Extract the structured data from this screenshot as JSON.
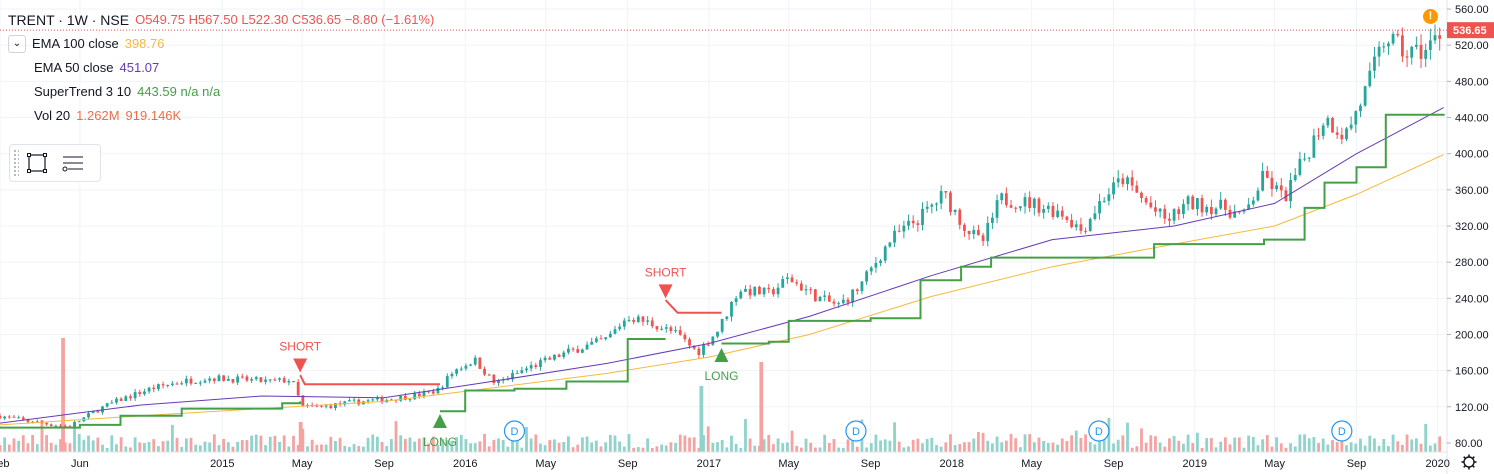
{
  "legend": {
    "symbol": "TRENT · 1W · NSE",
    "ohlc": "O549.75 H567.50 L522.30 C536.65 −8.80 (−1.61%)",
    "collapse_icon": "chevron-down-icon",
    "ema100": {
      "label": "EMA 100 close",
      "value": "398.76",
      "color": "#f5b93d"
    },
    "ema50": {
      "label": "EMA 50 close",
      "value": "451.07",
      "color": "#673ab7"
    },
    "supertrend": {
      "label": "SuperTrend 3 10",
      "value": "443.59 n/a n/a",
      "color": "#43a047"
    },
    "vol": {
      "label": "Vol 20",
      "value1": "1.262M",
      "value2": "919.146K",
      "color": "#ef6c45"
    }
  },
  "toolbar": {
    "rect_icon": "rectangle-select-icon",
    "list_icon": "object-tree-icon"
  },
  "alert_icon": "!",
  "settings_icon": "gear-icon",
  "colors": {
    "up": "#26a69a",
    "down": "#ef5350",
    "vol_up": "#8fd3cb",
    "vol_down": "#f5a3a1",
    "supertrend_up": "#43a047",
    "supertrend_down": "#ef5350",
    "last_price": "#ef5350"
  },
  "chart_data": {
    "type": "candlestick",
    "title": "TRENT · 1W · NSE",
    "ylim": [
      70,
      570
    ],
    "y_ticks": [
      80,
      120,
      160,
      200,
      240,
      280,
      320,
      360,
      400,
      440,
      480,
      520,
      560
    ],
    "x_range": [
      "2014-02-01",
      "2020-01-15"
    ],
    "x_ticks": [
      {
        "label": "Feb",
        "date": "2014-02-01"
      },
      {
        "label": "Jun",
        "date": "2014-06-01"
      },
      {
        "label": "2015",
        "date": "2015-01-01"
      },
      {
        "label": "May",
        "date": "2015-05-01"
      },
      {
        "label": "Sep",
        "date": "2015-09-01"
      },
      {
        "label": "2016",
        "date": "2016-01-01"
      },
      {
        "label": "May",
        "date": "2016-05-01"
      },
      {
        "label": "Sep",
        "date": "2016-09-01"
      },
      {
        "label": "2017",
        "date": "2017-01-01"
      },
      {
        "label": "May",
        "date": "2017-05-01"
      },
      {
        "label": "Sep",
        "date": "2017-09-01"
      },
      {
        "label": "2018",
        "date": "2018-01-01"
      },
      {
        "label": "May",
        "date": "2018-05-01"
      },
      {
        "label": "Sep",
        "date": "2018-09-01"
      },
      {
        "label": "2019",
        "date": "2019-01-01"
      },
      {
        "label": "May",
        "date": "2019-05-01"
      },
      {
        "label": "Sep",
        "date": "2019-09-01"
      },
      {
        "label": "2020",
        "date": "2020-01-01"
      }
    ],
    "last_price": {
      "value": 536.65,
      "label": "536.65"
    },
    "price_path": [
      [
        "2014-02-01",
        110
      ],
      [
        "2014-03-15",
        104
      ],
      [
        "2014-05-15",
        98
      ],
      [
        "2014-06-01",
        105
      ],
      [
        "2014-07-01",
        118
      ],
      [
        "2014-08-01",
        128
      ],
      [
        "2014-09-15",
        140
      ],
      [
        "2014-11-01",
        148
      ],
      [
        "2014-12-15",
        152
      ],
      [
        "2015-02-01",
        150
      ],
      [
        "2015-03-15",
        148
      ],
      [
        "2015-04-15",
        150
      ],
      [
        "2015-05-01",
        120
      ],
      [
        "2015-06-01",
        120
      ],
      [
        "2015-07-15",
        125
      ],
      [
        "2015-09-01",
        128
      ],
      [
        "2015-10-15",
        132
      ],
      [
        "2015-11-20",
        138
      ],
      [
        "2015-12-15",
        160
      ],
      [
        "2016-01-15",
        172
      ],
      [
        "2016-02-15",
        145
      ],
      [
        "2016-04-01",
        162
      ],
      [
        "2016-06-01",
        180
      ],
      [
        "2016-08-01",
        195
      ],
      [
        "2016-09-01",
        220
      ],
      [
        "2016-10-15",
        210
      ],
      [
        "2016-11-15",
        200
      ],
      [
        "2016-12-15",
        180
      ],
      [
        "2017-01-15",
        205
      ],
      [
        "2017-02-15",
        250
      ],
      [
        "2017-04-01",
        245
      ],
      [
        "2017-05-01",
        262
      ],
      [
        "2017-06-15",
        240
      ],
      [
        "2017-07-15",
        232
      ],
      [
        "2017-08-15",
        252
      ],
      [
        "2017-10-01",
        305
      ],
      [
        "2017-11-15",
        330
      ],
      [
        "2017-12-20",
        355
      ],
      [
        "2018-01-20",
        320
      ],
      [
        "2018-02-15",
        300
      ],
      [
        "2018-03-15",
        350
      ],
      [
        "2018-05-01",
        345
      ],
      [
        "2018-06-15",
        335
      ],
      [
        "2018-07-15",
        315
      ],
      [
        "2018-08-15",
        350
      ],
      [
        "2018-09-15",
        372
      ],
      [
        "2018-10-20",
        345
      ],
      [
        "2018-11-20",
        325
      ],
      [
        "2018-12-20",
        345
      ],
      [
        "2019-02-15",
        340
      ],
      [
        "2019-03-15",
        330
      ],
      [
        "2019-04-15",
        375
      ],
      [
        "2019-05-15",
        350
      ],
      [
        "2019-06-15",
        395
      ],
      [
        "2019-07-15",
        440
      ],
      [
        "2019-08-15",
        420
      ],
      [
        "2019-09-15",
        470
      ],
      [
        "2019-10-15",
        530
      ],
      [
        "2019-11-15",
        510
      ],
      [
        "2019-12-15",
        515
      ],
      [
        "2020-01-10",
        537
      ]
    ],
    "ema100_path": [
      [
        "2014-02-01",
        100
      ],
      [
        "2014-09-01",
        110
      ],
      [
        "2015-03-01",
        118
      ],
      [
        "2015-09-01",
        126
      ],
      [
        "2016-02-01",
        140
      ],
      [
        "2016-08-01",
        157
      ],
      [
        "2017-01-01",
        175
      ],
      [
        "2017-06-01",
        200
      ],
      [
        "2017-12-01",
        242
      ],
      [
        "2018-06-01",
        275
      ],
      [
        "2018-12-01",
        300
      ],
      [
        "2019-05-01",
        320
      ],
      [
        "2019-09-01",
        355
      ],
      [
        "2020-01-10",
        399
      ]
    ],
    "ema50_path": [
      [
        "2014-02-01",
        102
      ],
      [
        "2014-09-01",
        122
      ],
      [
        "2015-03-01",
        132
      ],
      [
        "2015-09-01",
        130
      ],
      [
        "2016-02-01",
        147
      ],
      [
        "2016-08-01",
        168
      ],
      [
        "2017-01-01",
        190
      ],
      [
        "2017-06-01",
        220
      ],
      [
        "2017-12-01",
        265
      ],
      [
        "2018-06-01",
        305
      ],
      [
        "2018-12-01",
        320
      ],
      [
        "2019-05-01",
        345
      ],
      [
        "2019-09-01",
        400
      ],
      [
        "2020-01-10",
        451
      ]
    ],
    "supertrend_up_1": [
      [
        "2014-02-01",
        97
      ],
      [
        "2014-06-01",
        100
      ],
      [
        "2014-08-01",
        110
      ],
      [
        "2014-11-01",
        118
      ],
      [
        "2015-04-01",
        124
      ],
      [
        "2015-04-28",
        126
      ]
    ],
    "supertrend_down_1": [
      [
        "2015-04-28",
        155
      ],
      [
        "2015-05-05",
        145
      ],
      [
        "2015-11-24",
        145
      ]
    ],
    "supertrend_up_2": [
      [
        "2015-11-24",
        115
      ],
      [
        "2016-01-01",
        138
      ],
      [
        "2016-03-15",
        140
      ],
      [
        "2016-06-01",
        148
      ],
      [
        "2016-09-01",
        195
      ],
      [
        "2016-10-28",
        195
      ]
    ],
    "supertrend_down_2": [
      [
        "2016-10-28",
        238
      ],
      [
        "2016-11-15",
        224
      ],
      [
        "2017-01-20",
        224
      ]
    ],
    "supertrend_up_3": [
      [
        "2017-01-20",
        190
      ],
      [
        "2017-04-01",
        192
      ],
      [
        "2017-05-01",
        215
      ],
      [
        "2017-09-01",
        218
      ],
      [
        "2017-11-15",
        260
      ],
      [
        "2018-01-15",
        275
      ],
      [
        "2018-03-01",
        285
      ],
      [
        "2018-11-01",
        300
      ],
      [
        "2019-04-15",
        305
      ],
      [
        "2019-06-15",
        340
      ],
      [
        "2019-07-15",
        368
      ],
      [
        "2019-09-01",
        385
      ],
      [
        "2019-10-15",
        443
      ],
      [
        "2020-01-10",
        444
      ]
    ],
    "signals": [
      {
        "label": "SHORT",
        "date": "2015-04-28",
        "price": 158,
        "type": "short"
      },
      {
        "label": "LONG",
        "date": "2015-11-24",
        "price": 112,
        "type": "long"
      },
      {
        "label": "SHORT",
        "date": "2016-10-28",
        "price": 240,
        "type": "short"
      },
      {
        "label": "LONG",
        "date": "2017-01-20",
        "price": 185,
        "type": "long"
      }
    ],
    "dividends": [
      {
        "label": "D",
        "date": "2016-03-15"
      },
      {
        "label": "D",
        "date": "2017-08-10"
      },
      {
        "label": "D",
        "date": "2018-08-10"
      },
      {
        "label": "D",
        "date": "2019-08-10"
      }
    ],
    "volume_spikes": [
      {
        "date": "2014-05-06",
        "rel": 0.95,
        "dir": "down"
      },
      {
        "date": "2017-03-20",
        "rel": 0.75,
        "dir": "down"
      },
      {
        "date": "2016-12-20",
        "rel": 0.55,
        "dir": "up"
      },
      {
        "date": "2015-04-28",
        "rel": 0.25,
        "dir": "down"
      }
    ]
  }
}
